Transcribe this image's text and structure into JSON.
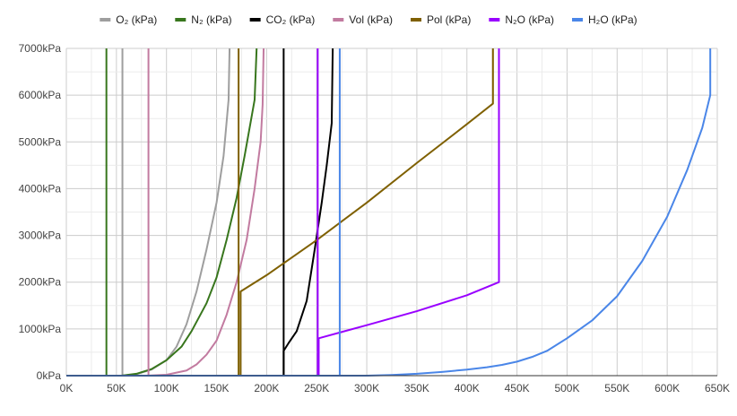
{
  "chart_data": {
    "type": "line",
    "title": "",
    "xlabel": "",
    "ylabel": "",
    "grid": true,
    "legend_position": "top",
    "x_range": [
      0,
      650000
    ],
    "y_range": [
      0,
      7000
    ],
    "x_ticks": [
      {
        "value": 0,
        "label": "0K"
      },
      {
        "value": 50000,
        "label": "50K"
      },
      {
        "value": 100000,
        "label": "100K"
      },
      {
        "value": 150000,
        "label": "150K"
      },
      {
        "value": 200000,
        "label": "200K"
      },
      {
        "value": 250000,
        "label": "250K"
      },
      {
        "value": 300000,
        "label": "300K"
      },
      {
        "value": 350000,
        "label": "350K"
      },
      {
        "value": 400000,
        "label": "400K"
      },
      {
        "value": 450000,
        "label": "450K"
      },
      {
        "value": 500000,
        "label": "500K"
      },
      {
        "value": 550000,
        "label": "550K"
      },
      {
        "value": 600000,
        "label": "600K"
      },
      {
        "value": 650000,
        "label": "650K"
      }
    ],
    "y_ticks": [
      {
        "value": 0,
        "label": "0kPa"
      },
      {
        "value": 1000,
        "label": "1000kPa"
      },
      {
        "value": 2000,
        "label": "2000kPa"
      },
      {
        "value": 3000,
        "label": "3000kPa"
      },
      {
        "value": 4000,
        "label": "4000kPa"
      },
      {
        "value": 5000,
        "label": "5000kPa"
      },
      {
        "value": 6000,
        "label": "6000kPa"
      },
      {
        "value": 7000,
        "label": "7000kPa"
      }
    ],
    "series": [
      {
        "name": "O₂ (kPa)",
        "color": "#9e9e9e",
        "segments": [
          [
            [
              0,
              0
            ],
            [
              55000,
              0
            ],
            [
              70000,
              30
            ],
            [
              85000,
              130
            ],
            [
              100000,
              330
            ],
            [
              110000,
              620
            ],
            [
              120000,
              1100
            ],
            [
              130000,
              1800
            ],
            [
              140000,
              2700
            ],
            [
              150000,
              3700
            ],
            [
              157000,
              4700
            ],
            [
              162000,
              5900
            ],
            [
              163000,
              7000
            ]
          ],
          [
            [
              56000,
              0
            ],
            [
              56000,
              7000
            ]
          ]
        ]
      },
      {
        "name": "N₂ (kPa)",
        "color": "#38761d",
        "segments": [
          [
            [
              0,
              0
            ],
            [
              55000,
              0
            ],
            [
              70000,
              40
            ],
            [
              85000,
              140
            ],
            [
              100000,
              330
            ],
            [
              115000,
              620
            ],
            [
              125000,
              950
            ],
            [
              140000,
              1550
            ],
            [
              150000,
              2100
            ],
            [
              160000,
              2900
            ],
            [
              170000,
              3800
            ],
            [
              178000,
              4700
            ],
            [
              188000,
              5900
            ],
            [
              190000,
              7000
            ]
          ],
          [
            [
              40000,
              0
            ],
            [
              40000,
              7000
            ]
          ]
        ]
      },
      {
        "name": "CO₂ (kPa)",
        "color": "#000000",
        "segments": [
          [
            [
              0,
              0
            ],
            [
              217000,
              0
            ],
            [
              217000,
              530
            ],
            [
              222000,
              700
            ],
            [
              230000,
              950
            ],
            [
              240000,
              1600
            ],
            [
              248000,
              2700
            ],
            [
              255000,
              3700
            ],
            [
              260000,
              4500
            ],
            [
              265000,
              5400
            ],
            [
              266000,
              7000
            ]
          ],
          [
            [
              217000,
              0
            ],
            [
              217000,
              7000
            ]
          ]
        ]
      },
      {
        "name": "Vol (kPa)",
        "color": "#c27ba0",
        "segments": [
          [
            [
              0,
              0
            ],
            [
              80000,
              0
            ],
            [
              100000,
              20
            ],
            [
              120000,
              110
            ],
            [
              130000,
              240
            ],
            [
              140000,
              450
            ],
            [
              150000,
              750
            ],
            [
              160000,
              1300
            ],
            [
              170000,
              2000
            ],
            [
              180000,
              2900
            ],
            [
              188000,
              4000
            ],
            [
              194000,
              5000
            ],
            [
              196000,
              5800
            ],
            [
              197000,
              7000
            ]
          ],
          [
            [
              82000,
              0
            ],
            [
              82000,
              7000
            ]
          ]
        ]
      },
      {
        "name": "Pol (kPa)",
        "color": "#7f6000",
        "segments": [
          [
            [
              0,
              0
            ],
            [
              174000,
              0
            ],
            [
              174000,
              1800
            ],
            [
              200000,
              2150
            ],
            [
              250000,
              2900
            ],
            [
              300000,
              3700
            ],
            [
              350000,
              4550
            ],
            [
              400000,
              5380
            ],
            [
              426000,
              5820
            ],
            [
              426000,
              7000
            ]
          ],
          [
            [
              172000,
              0
            ],
            [
              172000,
              7000
            ]
          ]
        ]
      },
      {
        "name": "N₂O (kPa)",
        "color": "#9900ff",
        "segments": [
          [
            [
              0,
              0
            ],
            [
              252000,
              0
            ],
            [
              252000,
              800
            ],
            [
              300000,
              1080
            ],
            [
              350000,
              1380
            ],
            [
              400000,
              1720
            ],
            [
              432000,
              2000
            ],
            [
              432000,
              7000
            ]
          ],
          [
            [
              251000,
              0
            ],
            [
              251000,
              7000
            ]
          ]
        ]
      },
      {
        "name": "H₂O (kPa)",
        "color": "#4a86e8",
        "segments": [
          [
            [
              0,
              0
            ],
            [
              300000,
              0
            ],
            [
              325000,
              15
            ],
            [
              350000,
              40
            ],
            [
              375000,
              80
            ],
            [
              400000,
              130
            ],
            [
              420000,
              180
            ],
            [
              435000,
              230
            ],
            [
              450000,
              300
            ],
            [
              465000,
              400
            ],
            [
              480000,
              530
            ],
            [
              500000,
              800
            ],
            [
              525000,
              1180
            ],
            [
              550000,
              1700
            ],
            [
              575000,
              2450
            ],
            [
              600000,
              3400
            ],
            [
              620000,
              4400
            ],
            [
              635000,
              5300
            ],
            [
              643000,
              6000
            ],
            [
              643000,
              7000
            ]
          ],
          [
            [
              273000,
              0
            ],
            [
              273000,
              7000
            ]
          ]
        ]
      }
    ]
  }
}
